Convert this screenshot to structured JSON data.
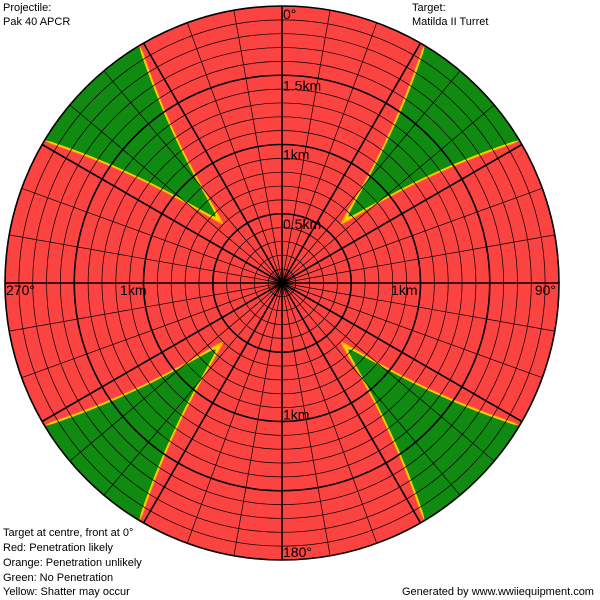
{
  "header": {
    "projectile_caption": "Projectile:",
    "projectile_name": "Pak 40 APCR",
    "target_caption": "Target:",
    "target_name": "Matilda II Turret"
  },
  "legend": {
    "orientation_note": "Target at centre, front at 0°",
    "red": "Red: Penetration likely",
    "orange": "Orange: Penetration unlikely",
    "green": "Green: No Penetration",
    "yellow": "Yellow: Shatter may occur"
  },
  "footer": {
    "credit": "Generated by www.wwiiequipment.com"
  },
  "chart_data": {
    "type": "polar_penetration",
    "radial_unit": "km",
    "max_range_km": 2.0,
    "angle_labels": [
      {
        "angle": 0,
        "text": "0°"
      },
      {
        "angle": 90,
        "text": "90°"
      },
      {
        "angle": 180,
        "text": "180°"
      },
      {
        "angle": 270,
        "text": "270°"
      }
    ],
    "range_labels": [
      {
        "angle": 0,
        "range_km": 1.5,
        "text": "1.5km"
      },
      {
        "angle": 0,
        "range_km": 1.0,
        "text": "1km"
      },
      {
        "angle": 0,
        "range_km": 0.5,
        "text": "0.5km"
      },
      {
        "angle": 270,
        "range_km": 1.0,
        "text": "1km"
      },
      {
        "angle": 90,
        "range_km": 1.0,
        "text": "1km"
      },
      {
        "angle": 180,
        "range_km": 1.0,
        "text": "1km"
      }
    ],
    "major_rings_km": [
      0.5,
      1.0,
      1.5,
      2.0
    ],
    "ring_step_km": 0.1,
    "spoke_step_deg": 10,
    "major_spoke_step_deg": 30,
    "no_penetration_sectors": [
      {
        "center_deg": 45,
        "half_width_deg": 14,
        "red_limit_start_km": 0.6,
        "red_limit_edge_km": 1.95
      },
      {
        "center_deg": 135,
        "half_width_deg": 14,
        "red_limit_start_km": 0.6,
        "red_limit_edge_km": 1.95
      },
      {
        "center_deg": 225,
        "half_width_deg": 14,
        "red_limit_start_km": 0.6,
        "red_limit_edge_km": 1.95
      },
      {
        "center_deg": 315,
        "half_width_deg": 14,
        "red_limit_start_km": 0.6,
        "red_limit_edge_km": 1.95
      }
    ],
    "orange_band_km": 0.06,
    "yellow_band_km": 0.06,
    "colors": {
      "red": "#fb4341",
      "orange": "#ffa500",
      "yellow": "#ffd200",
      "green": "#108a10",
      "grid": "#000000"
    }
  }
}
